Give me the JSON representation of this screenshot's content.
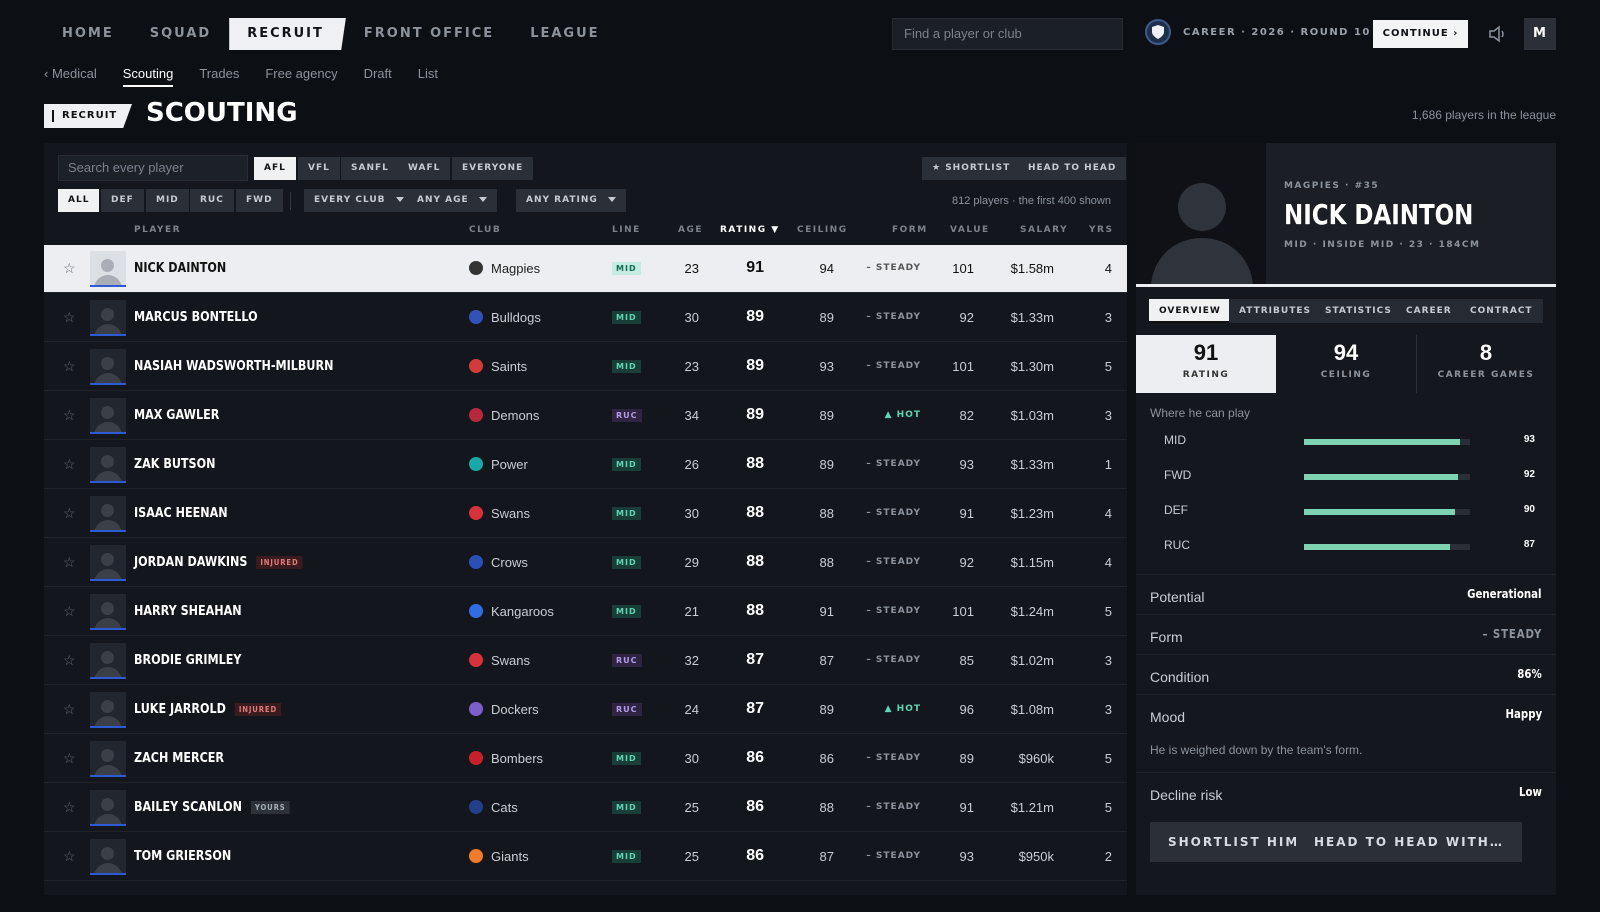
{
  "nav": {
    "items": [
      "HOME",
      "SQUAD",
      "RECRUIT",
      "FRONT OFFICE",
      "LEAGUE"
    ],
    "active": 2,
    "search_placeholder": "Find a player or club",
    "career": "CAREER · 2026 · ROUND 10",
    "continue": "CONTINUE ›",
    "avatar": "M"
  },
  "subnav": {
    "back": "‹ Medical",
    "items": [
      "Scouting",
      "Trades",
      "Free agency",
      "Draft",
      "List"
    ]
  },
  "page": {
    "badge": "RECRUIT",
    "title": "SCOUTING",
    "count": "1,686 players in the league"
  },
  "filters": {
    "search_placeholder": "Search every player",
    "leagues": [
      "AFL",
      "VFL",
      "SANFL",
      "WAFL",
      "EVERYONE"
    ],
    "shortlist": "★ SHORTLIST",
    "head_to_head": "HEAD TO HEAD",
    "lines": [
      "ALL",
      "DEF",
      "MID",
      "RUC",
      "FWD"
    ],
    "club": "EVERY CLUB",
    "age": "ANY AGE",
    "rating": "ANY RATING",
    "shown": "812 players · the first 400 shown"
  },
  "columns": [
    "PLAYER",
    "CLUB",
    "LINE",
    "AGE",
    "RATING ▼",
    "CEILING",
    "FORM",
    "VALUE",
    "SALARY",
    "YRS"
  ],
  "players": [
    {
      "name": "NICK DAINTON",
      "tag": "",
      "club": "Magpies",
      "clubColor": "#333333",
      "line": "MID",
      "age": "23",
      "rating": "91",
      "ceiling": "94",
      "form": "– STEADY",
      "value": "101",
      "salary": "$1.58m",
      "yrs": "4"
    },
    {
      "name": "MARCUS BONTELLO",
      "tag": "",
      "club": "Bulldogs",
      "clubColor": "#3352b8",
      "line": "MID",
      "age": "30",
      "rating": "89",
      "ceiling": "89",
      "form": "– STEADY",
      "value": "92",
      "salary": "$1.33m",
      "yrs": "3"
    },
    {
      "name": "NASIAH WADSWORTH-MILBURN",
      "tag": "",
      "club": "Saints",
      "clubColor": "#d33a3a",
      "line": "MID",
      "age": "23",
      "rating": "89",
      "ceiling": "93",
      "form": "– STEADY",
      "value": "101",
      "salary": "$1.30m",
      "yrs": "5"
    },
    {
      "name": "MAX GAWLER",
      "tag": "",
      "club": "Demons",
      "clubColor": "#b8283c",
      "line": "RUC",
      "age": "34",
      "rating": "89",
      "ceiling": "89",
      "form": "▲ HOT",
      "value": "82",
      "salary": "$1.03m",
      "yrs": "3"
    },
    {
      "name": "ZAK BUTSON",
      "tag": "",
      "club": "Power",
      "clubColor": "#1aa9a4",
      "line": "MID",
      "age": "26",
      "rating": "88",
      "ceiling": "89",
      "form": "– STEADY",
      "value": "93",
      "salary": "$1.33m",
      "yrs": "1"
    },
    {
      "name": "ISAAC HEENAN",
      "tag": "",
      "club": "Swans",
      "clubColor": "#d6323a",
      "line": "MID",
      "age": "30",
      "rating": "88",
      "ceiling": "88",
      "form": "– STEADY",
      "value": "91",
      "salary": "$1.23m",
      "yrs": "4"
    },
    {
      "name": "JORDAN DAWKINS",
      "tag": "INJURED",
      "club": "Crows",
      "clubColor": "#2b4fb5",
      "line": "MID",
      "age": "29",
      "rating": "88",
      "ceiling": "88",
      "form": "– STEADY",
      "value": "92",
      "salary": "$1.15m",
      "yrs": "4"
    },
    {
      "name": "HARRY SHEAHAN",
      "tag": "",
      "club": "Kangaroos",
      "clubColor": "#2f6de0",
      "line": "MID",
      "age": "21",
      "rating": "88",
      "ceiling": "91",
      "form": "– STEADY",
      "value": "101",
      "salary": "$1.24m",
      "yrs": "5"
    },
    {
      "name": "BRODIE GRIMLEY",
      "tag": "",
      "club": "Swans",
      "clubColor": "#d6323a",
      "line": "RUC",
      "age": "32",
      "rating": "87",
      "ceiling": "87",
      "form": "– STEADY",
      "value": "85",
      "salary": "$1.02m",
      "yrs": "3"
    },
    {
      "name": "LUKE JARROLD",
      "tag": "INJURED",
      "club": "Dockers",
      "clubColor": "#7d5fc9",
      "line": "RUC",
      "age": "24",
      "rating": "87",
      "ceiling": "89",
      "form": "▲ HOT",
      "value": "96",
      "salary": "$1.08m",
      "yrs": "3"
    },
    {
      "name": "ZACH MERCER",
      "tag": "",
      "club": "Bombers",
      "clubColor": "#c8202a",
      "line": "MID",
      "age": "30",
      "rating": "86",
      "ceiling": "86",
      "form": "– STEADY",
      "value": "89",
      "salary": "$960k",
      "yrs": "5"
    },
    {
      "name": "BAILEY SCANLON",
      "tag": "YOURS",
      "club": "Cats",
      "clubColor": "#233f8a",
      "line": "MID",
      "age": "25",
      "rating": "86",
      "ceiling": "88",
      "form": "– STEADY",
      "value": "91",
      "salary": "$1.21m",
      "yrs": "5"
    },
    {
      "name": "TOM GRIERSON",
      "tag": "",
      "club": "Giants",
      "clubColor": "#ee7a2a",
      "line": "MID",
      "age": "25",
      "rating": "86",
      "ceiling": "87",
      "form": "– STEADY",
      "value": "93",
      "salary": "$950k",
      "yrs": "2"
    }
  ],
  "detail": {
    "club": "MAGPIES · #35",
    "name": "NICK DAINTON",
    "sub": "MID · INSIDE MID · 23 · 184CM",
    "tabs": [
      "OVERVIEW",
      "ATTRIBUTES",
      "STATISTICS",
      "CAREER",
      "CONTRACT"
    ],
    "stats": [
      {
        "n": "91",
        "l": "RATING"
      },
      {
        "n": "94",
        "l": "CEILING"
      },
      {
        "n": "8",
        "l": "CAREER GAMES"
      }
    ],
    "where": "Where he can play",
    "positions": [
      {
        "pos": "MID",
        "val": 93
      },
      {
        "pos": "FWD",
        "val": 92
      },
      {
        "pos": "DEF",
        "val": 90
      },
      {
        "pos": "RUC",
        "val": 87
      }
    ],
    "kv": [
      {
        "k": "Potential",
        "v": "Generational"
      },
      {
        "k": "Form",
        "v": "– STEADY"
      },
      {
        "k": "Condition",
        "v": "86%"
      },
      {
        "k": "Mood",
        "v": "Happy"
      }
    ],
    "note": "He is weighed down by the team's form.",
    "decline": {
      "k": "Decline risk",
      "v": "Low"
    },
    "btn_shortlist": "SHORTLIST HIM",
    "btn_h2h": "HEAD TO HEAD WITH…"
  }
}
